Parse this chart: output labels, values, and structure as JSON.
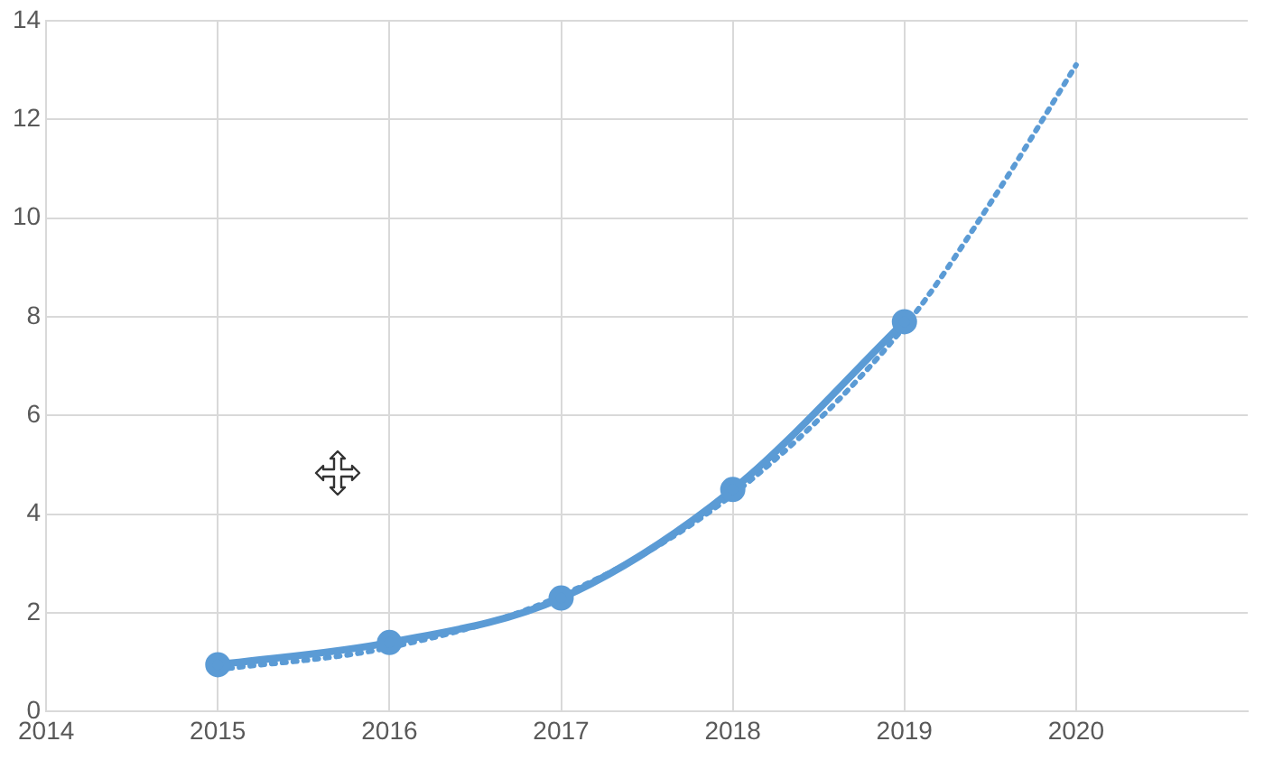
{
  "chart_data": {
    "type": "line",
    "xlim": [
      2014,
      2021
    ],
    "xticks": [
      2014,
      2015,
      2016,
      2017,
      2018,
      2019,
      2020
    ],
    "ylim": [
      0,
      14
    ],
    "yticks": [
      0,
      2,
      4,
      6,
      8,
      10,
      12,
      14
    ],
    "grid": true,
    "legend": false,
    "series": [
      {
        "color": "#5b9bd5",
        "marker": "circle",
        "line_style": "solid",
        "x": [
          2015,
          2016,
          2017,
          2018,
          2019
        ],
        "values": [
          0.95,
          1.4,
          2.3,
          4.5,
          7.9
        ]
      },
      {
        "color": "#5b9bd5",
        "marker": "none",
        "line_style": "dotted",
        "x": [
          2015,
          2016,
          2017,
          2018,
          2019,
          2019.5,
          2020
        ],
        "values": [
          0.85,
          1.3,
          2.35,
          4.4,
          7.8,
          10.3,
          13.1
        ]
      }
    ]
  }
}
